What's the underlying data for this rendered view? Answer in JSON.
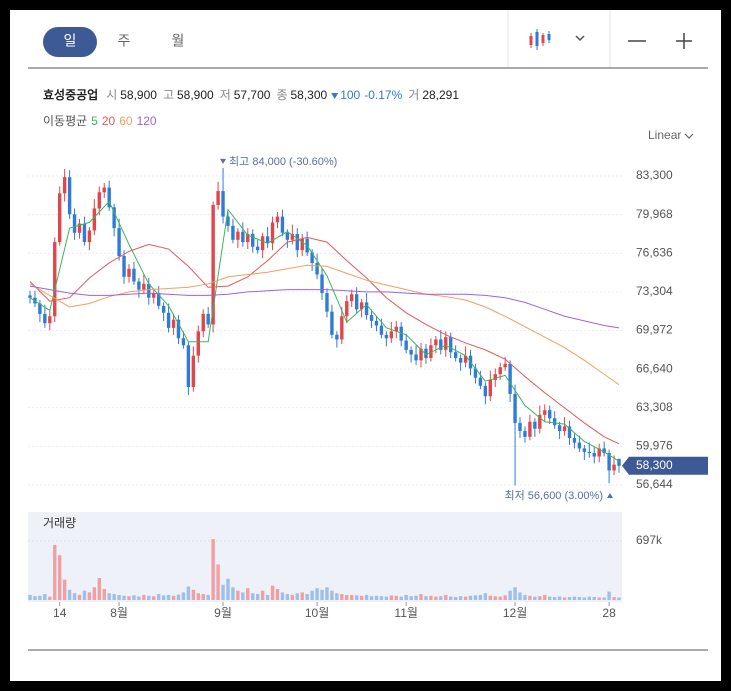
{
  "tabs": [
    "일",
    "주",
    "월"
  ],
  "summary": {
    "name": "효성중공업",
    "open_label": "시",
    "open": "58,900",
    "high_label": "고",
    "high": "58,900",
    "low_label": "저",
    "low": "57,700",
    "close_label": "종",
    "close": "58,300",
    "change": "100",
    "change_rate": "-0.17%",
    "volume_label": "거",
    "volume": "28,291"
  },
  "scale_mode": "Linear",
  "chart_data": [
    {
      "type": "candlestick",
      "ma_title": "이동평균",
      "categories": [
        null,
        null,
        null,
        null,
        null,
        null,
        "14",
        null,
        null,
        null,
        null,
        null,
        null,
        null,
        null,
        null,
        null,
        null,
        "8월",
        null,
        null,
        null,
        null,
        null,
        null,
        null,
        null,
        null,
        null,
        null,
        null,
        null,
        null,
        null,
        null,
        null,
        null,
        null,
        null,
        "9월",
        null,
        null,
        null,
        null,
        null,
        null,
        null,
        null,
        null,
        null,
        null,
        null,
        null,
        null,
        null,
        null,
        null,
        null,
        "10월",
        null,
        null,
        null,
        null,
        null,
        null,
        null,
        null,
        null,
        null,
        null,
        null,
        null,
        null,
        null,
        null,
        null,
        "11월",
        null,
        null,
        null,
        null,
        null,
        null,
        null,
        null,
        null,
        null,
        null,
        null,
        null,
        null,
        null,
        null,
        null,
        null,
        null,
        null,
        null,
        "12월",
        null,
        null,
        null,
        null,
        null,
        null,
        null,
        null,
        null,
        null,
        null,
        null,
        null,
        null,
        null,
        null,
        null,
        null,
        "28",
        null,
        null
      ],
      "open": [
        73000,
        72800,
        72300,
        71400,
        70600,
        71200,
        77600,
        81800,
        83200,
        80000,
        78400,
        79200,
        77600,
        78600,
        80500,
        81900,
        82300,
        80600,
        78800,
        76400,
        74600,
        75300,
        74200,
        73500,
        74000,
        72800,
        73200,
        72100,
        71500,
        70200,
        70900,
        69300,
        68700,
        65100,
        67800,
        69900,
        71400,
        70500,
        80800,
        82000,
        79800,
        79000,
        77800,
        78500,
        77600,
        78300,
        77200,
        76900,
        78100,
        77500,
        79300,
        79800,
        78400,
        77800,
        78300,
        76900,
        77900,
        76700,
        75800,
        74800,
        73200,
        71600,
        69600,
        69200,
        71200,
        72500,
        73100,
        71800,
        72400,
        71300,
        70800,
        70400,
        69600,
        69300,
        69900,
        70300,
        69100,
        68300,
        67900,
        67400,
        68400,
        67600,
        68700,
        69200,
        68300,
        69400,
        68100,
        67600,
        67200,
        67800,
        66700,
        65900,
        65200,
        64300,
        65700,
        66200,
        66800,
        67100,
        64500,
        62000,
        61300,
        60800,
        62100,
        61500,
        62700,
        63100,
        62400,
        61800,
        61300,
        61700,
        60700,
        60300,
        59800,
        59500,
        59400,
        59100,
        59800,
        59400,
        57900,
        58900
      ],
      "high": [
        73400,
        73400,
        72600,
        72200,
        71700,
        78000,
        82400,
        83900,
        83800,
        80500,
        79600,
        79800,
        78900,
        81300,
        82400,
        82700,
        82900,
        80900,
        79600,
        76900,
        75700,
        75900,
        74500,
        74800,
        74500,
        73600,
        73800,
        72400,
        72300,
        71400,
        71300,
        69900,
        69000,
        68600,
        70400,
        71800,
        72000,
        81100,
        82800,
        84000,
        80200,
        79600,
        78800,
        79300,
        78800,
        78700,
        77800,
        78400,
        78900,
        79800,
        80200,
        80400,
        78700,
        79100,
        78800,
        78300,
        78500,
        77000,
        76600,
        75300,
        73600,
        72200,
        69900,
        72000,
        73000,
        73500,
        73700,
        72700,
        73200,
        71800,
        71200,
        71000,
        69900,
        70700,
        70800,
        70700,
        69700,
        68600,
        68700,
        68900,
        68800,
        69300,
        69500,
        70000,
        69900,
        69800,
        68700,
        67900,
        68600,
        68300,
        67100,
        66500,
        65500,
        66500,
        66700,
        67200,
        67700,
        67400,
        65300,
        62500,
        61700,
        62700,
        62400,
        63500,
        63600,
        63500,
        63000,
        62100,
        62500,
        62200,
        61100,
        60900,
        60100,
        60300,
        59900,
        60200,
        60400,
        59700,
        59200,
        58900
      ],
      "low": [
        72300,
        72000,
        70700,
        70200,
        70000,
        70700,
        77300,
        81100,
        79600,
        77800,
        77900,
        77300,
        76900,
        78200,
        79900,
        81400,
        80300,
        78100,
        76000,
        74000,
        74100,
        73900,
        72800,
        73100,
        72200,
        72300,
        71800,
        70800,
        69800,
        69600,
        68800,
        68400,
        64400,
        64700,
        67200,
        69400,
        70200,
        69800,
        80400,
        79200,
        78500,
        77500,
        77100,
        77200,
        77000,
        76700,
        76600,
        76200,
        77100,
        76900,
        78800,
        78100,
        77100,
        77400,
        76300,
        76400,
        76400,
        75100,
        74400,
        72600,
        71100,
        69300,
        68500,
        68800,
        70600,
        72000,
        71500,
        71100,
        70900,
        70200,
        69900,
        69300,
        68600,
        68900,
        69300,
        68600,
        68000,
        67200,
        67000,
        66800,
        67100,
        67300,
        68000,
        67900,
        67700,
        67600,
        67300,
        66500,
        66800,
        66100,
        65400,
        64900,
        63600,
        63900,
        65100,
        65700,
        66500,
        63800,
        56600,
        60700,
        60300,
        60500,
        60800,
        61100,
        62100,
        61900,
        61500,
        60600,
        60900,
        60100,
        59800,
        59500,
        58800,
        59000,
        58500,
        58600,
        59100,
        56800,
        57500,
        57700
      ],
      "close": [
        72800,
        72300,
        71400,
        70600,
        71200,
        77600,
        81800,
        83200,
        80000,
        78400,
        79200,
        77600,
        78600,
        80500,
        81900,
        82300,
        80600,
        78800,
        76400,
        74600,
        75300,
        74200,
        73500,
        74000,
        72800,
        73200,
        72100,
        71500,
        70200,
        70900,
        69300,
        68700,
        65100,
        67800,
        69900,
        71400,
        70500,
        80800,
        82000,
        79800,
        79000,
        77800,
        78500,
        77600,
        78300,
        77200,
        76900,
        78100,
        77500,
        79300,
        79800,
        78400,
        77800,
        78300,
        76900,
        77900,
        76700,
        75800,
        74800,
        73200,
        71600,
        69600,
        69200,
        71200,
        72500,
        73100,
        71800,
        72400,
        71300,
        70800,
        70400,
        69600,
        69300,
        69900,
        70300,
        69100,
        68300,
        67900,
        67400,
        68400,
        67600,
        68700,
        69200,
        68300,
        69400,
        68100,
        67600,
        67200,
        67800,
        66700,
        65900,
        65200,
        64300,
        65700,
        66200,
        66800,
        67100,
        64500,
        62000,
        61300,
        60800,
        62100,
        61500,
        62700,
        63100,
        62400,
        61800,
        61300,
        61700,
        60700,
        60300,
        59800,
        59500,
        59400,
        59100,
        59800,
        59400,
        57900,
        58400,
        58300
      ],
      "up_color": "#e0464b",
      "down_color": "#2f7bd6",
      "ylim": [
        54918,
        85544
      ],
      "yticks": [
        {
          "value": 83300,
          "label": "83,300"
        },
        {
          "value": 79968,
          "label": "79,968"
        },
        {
          "value": 76636,
          "label": "76,636"
        },
        {
          "value": 73304,
          "label": "73,304"
        },
        {
          "value": 69972,
          "label": "69,972"
        },
        {
          "value": 66640,
          "label": "66,640"
        },
        {
          "value": 63308,
          "label": "63,308"
        },
        {
          "value": 59976,
          "label": "59,976"
        },
        {
          "value": 56644,
          "label": "56,644"
        }
      ],
      "grid": true,
      "ma_series": [
        {
          "name": "5",
          "color": "#3cb55b",
          "x": [
            0,
            4,
            8,
            12,
            16,
            20,
            24,
            28,
            32,
            36,
            40,
            44,
            48,
            52,
            56,
            60,
            64,
            68,
            72,
            76,
            80,
            84,
            88,
            92,
            96,
            100,
            104,
            108,
            112,
            116,
            119
          ],
          "values": [
            72800,
            71700,
            78800,
            79300,
            81100,
            77400,
            74000,
            72100,
            69000,
            69000,
            80400,
            78200,
            77500,
            78500,
            77300,
            74700,
            70700,
            72200,
            70200,
            69600,
            67900,
            68700,
            67800,
            65600,
            66100,
            63500,
            62100,
            61900,
            60400,
            59500,
            58700
          ]
        },
        {
          "name": "20",
          "color": "#e05a5a",
          "x": [
            0,
            4,
            8,
            12,
            16,
            20,
            24,
            28,
            32,
            36,
            40,
            44,
            48,
            52,
            56,
            60,
            64,
            68,
            72,
            76,
            80,
            84,
            88,
            92,
            96,
            100,
            104,
            108,
            112,
            116,
            119
          ],
          "values": [
            74200,
            72500,
            72800,
            74500,
            75800,
            76800,
            77400,
            77000,
            75500,
            73700,
            73800,
            74600,
            76000,
            77600,
            78000,
            77600,
            76000,
            74500,
            72800,
            71500,
            70500,
            69600,
            68900,
            68300,
            67500,
            66000,
            64600,
            63300,
            62000,
            60800,
            60200
          ]
        },
        {
          "name": "60",
          "color": "#f0a060",
          "x": [
            0,
            4,
            8,
            12,
            16,
            20,
            24,
            28,
            32,
            36,
            40,
            44,
            48,
            52,
            56,
            60,
            64,
            68,
            72,
            76,
            80,
            84,
            88,
            92,
            96,
            100,
            104,
            108,
            112,
            116,
            119
          ],
          "values": [
            74000,
            73000,
            72000,
            72300,
            72900,
            73300,
            73500,
            73600,
            73700,
            74000,
            74600,
            74800,
            75000,
            75300,
            75600,
            75500,
            74900,
            74300,
            73900,
            73500,
            73100,
            72900,
            72600,
            72000,
            71200,
            70300,
            69400,
            68500,
            67400,
            66200,
            65300
          ]
        },
        {
          "name": "120",
          "color": "#a262d6",
          "x": [
            0,
            4,
            8,
            12,
            16,
            20,
            24,
            28,
            32,
            36,
            40,
            44,
            48,
            52,
            56,
            60,
            64,
            68,
            72,
            76,
            80,
            84,
            88,
            92,
            96,
            100,
            104,
            108,
            112,
            116,
            119
          ],
          "values": [
            73800,
            73500,
            73200,
            73000,
            73000,
            73100,
            73200,
            73100,
            73000,
            73000,
            73100,
            73300,
            73400,
            73500,
            73500,
            73500,
            73400,
            73300,
            73300,
            73200,
            73100,
            73100,
            73100,
            73000,
            72800,
            72400,
            71800,
            71200,
            70800,
            70400,
            70200
          ]
        }
      ],
      "annotations": [
        {
          "text": "최고 84,000 (-30.60%)"
        },
        {
          "text": "최저 56,600 (3.00%)"
        }
      ],
      "last_price": {
        "value": 58300,
        "label": "58,300"
      }
    },
    {
      "type": "volume-bar",
      "title": "거래량",
      "values": [
        60000,
        45000,
        50000,
        70000,
        40000,
        650000,
        530000,
        240000,
        120000,
        80000,
        60000,
        110000,
        90000,
        150000,
        260000,
        130000,
        80000,
        70000,
        60000,
        50000,
        45000,
        55000,
        40000,
        60000,
        50000,
        45000,
        70000,
        55000,
        60000,
        50000,
        65000,
        90000,
        160000,
        120000,
        80000,
        70000,
        60000,
        720000,
        420000,
        180000,
        250000,
        150000,
        110000,
        90000,
        140000,
        80000,
        70000,
        110000,
        60000,
        170000,
        130000,
        90000,
        70000,
        60000,
        80000,
        90000,
        70000,
        110000,
        140000,
        120000,
        150000,
        110000,
        80000,
        70000,
        60000,
        60000,
        55000,
        50000,
        60000,
        45000,
        50000,
        45000,
        40000,
        55000,
        50000,
        40000,
        60000,
        45000,
        50000,
        70000,
        45000,
        50000,
        40000,
        45000,
        60000,
        40000,
        35000,
        45000,
        40000,
        50000,
        55000,
        60000,
        80000,
        50000,
        45000,
        40000,
        55000,
        110000,
        150000,
        90000,
        60000,
        50000,
        40000,
        45000,
        60000,
        40000,
        35000,
        40000,
        30000,
        35000,
        40000,
        35000,
        30000,
        40000,
        35000,
        30000,
        30000,
        100000,
        35000,
        28291
      ],
      "up_color": "#f0a0a3",
      "down_color": "#9dbfe8",
      "ylim": [
        0,
        1040000
      ],
      "yticks": [
        {
          "value": 697000,
          "label": "697k"
        }
      ]
    }
  ]
}
